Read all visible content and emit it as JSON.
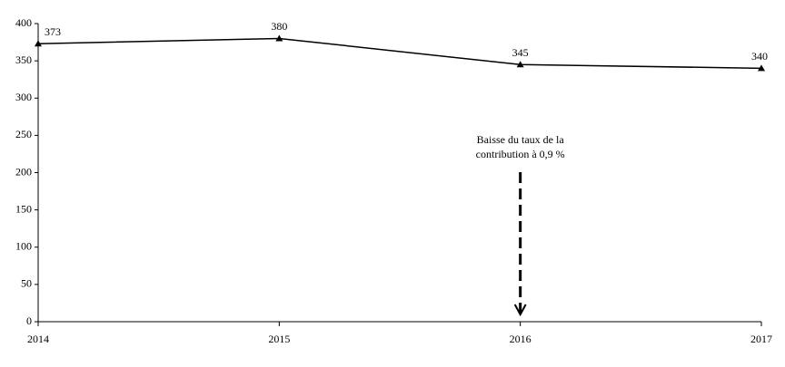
{
  "chart_data": {
    "type": "line",
    "categories": [
      "2014",
      "2015",
      "2016",
      "2017"
    ],
    "series": [
      {
        "color": "#000000",
        "values": [
          373,
          380,
          345,
          340
        ]
      }
    ],
    "ylim": [
      0,
      400
    ],
    "yticks": [
      0,
      50,
      100,
      150,
      200,
      250,
      300,
      350,
      400
    ],
    "grid": false,
    "annotation": [
      "Baisse du taux de la",
      "contribution à 0,9 %"
    ]
  }
}
